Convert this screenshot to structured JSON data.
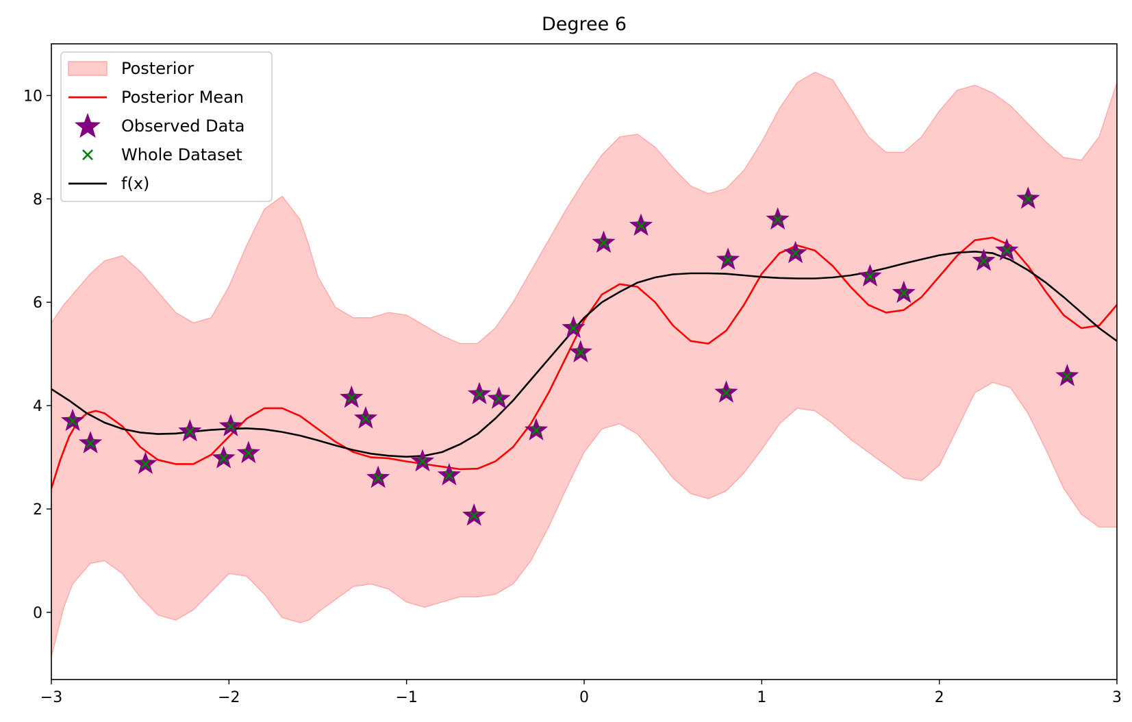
{
  "chart_data": {
    "type": "line",
    "title": "Degree 6",
    "xlabel": "",
    "ylabel": "",
    "xlim": [
      -3,
      3
    ],
    "ylim": [
      -1.3,
      11.0
    ],
    "x_ticks": [
      -3,
      -2,
      -1,
      0,
      1,
      2,
      3
    ],
    "x_tick_labels": [
      "−3",
      "−2",
      "−1",
      "0",
      "1",
      "2",
      "3"
    ],
    "y_ticks": [
      0,
      2,
      4,
      6,
      8,
      10
    ],
    "y_tick_labels": [
      "0",
      "2",
      "4",
      "6",
      "8",
      "10"
    ],
    "grid": false,
    "legend_position": "top-left",
    "legend": [
      {
        "label": "Posterior",
        "kind": "patch"
      },
      {
        "label": "Posterior Mean",
        "kind": "line"
      },
      {
        "label": "Observed Data",
        "kind": "star"
      },
      {
        "label": "Whole Dataset",
        "kind": "x"
      },
      {
        "label": "f(x)",
        "kind": "line"
      }
    ],
    "colors": {
      "posterior_fill": "#ffcccc",
      "posterior_edge": "#ffaaaa",
      "posterior_mean": "#ff0000",
      "observed": "#800080",
      "whole": "#008000",
      "fx": "#000000"
    },
    "posterior_band": {
      "x": [
        -3.0,
        -2.93,
        -2.88,
        -2.78,
        -2.7,
        -2.6,
        -2.5,
        -2.4,
        -2.3,
        -2.2,
        -2.1,
        -2.0,
        -1.9,
        -1.8,
        -1.7,
        -1.6,
        -1.55,
        -1.5,
        -1.4,
        -1.3,
        -1.2,
        -1.1,
        -1.0,
        -0.9,
        -0.8,
        -0.7,
        -0.6,
        -0.5,
        -0.4,
        -0.3,
        -0.2,
        -0.1,
        0.0,
        0.1,
        0.2,
        0.3,
        0.4,
        0.5,
        0.6,
        0.7,
        0.8,
        0.9,
        1.0,
        1.1,
        1.2,
        1.3,
        1.4,
        1.5,
        1.6,
        1.7,
        1.8,
        1.9,
        2.0,
        2.1,
        2.2,
        2.3,
        2.4,
        2.5,
        2.6,
        2.7,
        2.8,
        2.9,
        3.0
      ],
      "upper": [
        5.6,
        5.95,
        6.15,
        6.55,
        6.8,
        6.9,
        6.6,
        6.2,
        5.8,
        5.6,
        5.7,
        6.3,
        7.1,
        7.8,
        8.05,
        7.6,
        7.1,
        6.5,
        5.9,
        5.7,
        5.7,
        5.8,
        5.75,
        5.55,
        5.35,
        5.2,
        5.2,
        5.5,
        6.0,
        6.6,
        7.2,
        7.8,
        8.35,
        8.85,
        9.2,
        9.25,
        9.0,
        8.6,
        8.25,
        8.1,
        8.2,
        8.55,
        9.1,
        9.75,
        10.25,
        10.45,
        10.3,
        9.75,
        9.2,
        8.9,
        8.9,
        9.2,
        9.7,
        10.1,
        10.2,
        10.05,
        9.8,
        9.45,
        9.1,
        8.8,
        8.75,
        9.2,
        10.25
      ],
      "lower": [
        -0.85,
        0.1,
        0.55,
        0.95,
        1.0,
        0.75,
        0.3,
        -0.05,
        -0.15,
        0.05,
        0.4,
        0.75,
        0.7,
        0.35,
        -0.1,
        -0.2,
        -0.15,
        0.0,
        0.25,
        0.5,
        0.55,
        0.45,
        0.2,
        0.1,
        0.2,
        0.3,
        0.3,
        0.35,
        0.55,
        1.0,
        1.65,
        2.4,
        3.1,
        3.55,
        3.65,
        3.45,
        3.05,
        2.6,
        2.3,
        2.2,
        2.35,
        2.7,
        3.15,
        3.65,
        3.95,
        3.9,
        3.65,
        3.35,
        3.1,
        2.85,
        2.6,
        2.55,
        2.85,
        3.55,
        4.25,
        4.45,
        4.35,
        3.85,
        3.15,
        2.4,
        1.9,
        1.65,
        1.65
      ]
    },
    "series": [
      {
        "name": "Posterior Mean",
        "color": "#ff0000",
        "x": [
          -3.0,
          -2.95,
          -2.9,
          -2.85,
          -2.8,
          -2.75,
          -2.7,
          -2.6,
          -2.5,
          -2.4,
          -2.3,
          -2.2,
          -2.1,
          -2.0,
          -1.9,
          -1.8,
          -1.7,
          -1.6,
          -1.5,
          -1.4,
          -1.3,
          -1.2,
          -1.1,
          -1.0,
          -0.9,
          -0.8,
          -0.7,
          -0.6,
          -0.5,
          -0.4,
          -0.3,
          -0.2,
          -0.1,
          0.0,
          0.1,
          0.2,
          0.3,
          0.4,
          0.5,
          0.6,
          0.7,
          0.8,
          0.9,
          1.0,
          1.1,
          1.2,
          1.3,
          1.4,
          1.5,
          1.6,
          1.7,
          1.8,
          1.9,
          2.0,
          2.1,
          2.2,
          2.3,
          2.4,
          2.5,
          2.6,
          2.7,
          2.8,
          2.9,
          3.0
        ],
        "y": [
          2.4,
          2.95,
          3.4,
          3.7,
          3.85,
          3.9,
          3.85,
          3.6,
          3.2,
          2.95,
          2.87,
          2.87,
          3.05,
          3.4,
          3.75,
          3.95,
          3.95,
          3.8,
          3.55,
          3.3,
          3.1,
          3.0,
          2.98,
          2.92,
          2.87,
          2.82,
          2.77,
          2.78,
          2.92,
          3.2,
          3.65,
          4.25,
          4.95,
          5.65,
          6.15,
          6.35,
          6.3,
          6.0,
          5.55,
          5.25,
          5.2,
          5.45,
          5.95,
          6.55,
          6.95,
          7.1,
          7.0,
          6.7,
          6.3,
          5.95,
          5.8,
          5.85,
          6.1,
          6.5,
          6.9,
          7.2,
          7.25,
          7.1,
          6.7,
          6.2,
          5.75,
          5.5,
          5.55,
          5.95
        ]
      },
      {
        "name": "f(x)",
        "color": "#000000",
        "x": [
          -3.0,
          -2.9,
          -2.8,
          -2.7,
          -2.6,
          -2.5,
          -2.4,
          -2.3,
          -2.2,
          -2.1,
          -2.0,
          -1.9,
          -1.8,
          -1.7,
          -1.6,
          -1.5,
          -1.4,
          -1.3,
          -1.2,
          -1.1,
          -1.0,
          -0.9,
          -0.8,
          -0.7,
          -0.6,
          -0.5,
          -0.4,
          -0.3,
          -0.2,
          -0.1,
          0.0,
          0.1,
          0.2,
          0.3,
          0.4,
          0.5,
          0.6,
          0.7,
          0.8,
          0.9,
          1.0,
          1.1,
          1.2,
          1.3,
          1.4,
          1.5,
          1.6,
          1.7,
          1.8,
          1.9,
          2.0,
          2.1,
          2.2,
          2.3,
          2.4,
          2.5,
          2.6,
          2.7,
          2.8,
          2.9,
          3.0
        ],
        "y": [
          4.32,
          4.1,
          3.85,
          3.67,
          3.55,
          3.48,
          3.45,
          3.46,
          3.5,
          3.53,
          3.55,
          3.56,
          3.54,
          3.49,
          3.42,
          3.33,
          3.23,
          3.14,
          3.07,
          3.03,
          3.01,
          3.03,
          3.1,
          3.25,
          3.45,
          3.75,
          4.1,
          4.5,
          4.9,
          5.3,
          5.7,
          6.0,
          6.2,
          6.38,
          6.48,
          6.54,
          6.56,
          6.56,
          6.55,
          6.52,
          6.49,
          6.47,
          6.46,
          6.46,
          6.48,
          6.52,
          6.58,
          6.66,
          6.75,
          6.83,
          6.91,
          6.96,
          6.98,
          6.95,
          6.82,
          6.62,
          6.38,
          6.1,
          5.8,
          5.5,
          5.25
        ]
      }
    ],
    "points": {
      "x": [
        -2.88,
        -2.78,
        -2.47,
        -2.22,
        -2.03,
        -1.99,
        -1.89,
        -1.31,
        -1.23,
        -1.16,
        -0.91,
        -0.76,
        -0.62,
        -0.59,
        -0.48,
        -0.27,
        -0.06,
        -0.02,
        0.11,
        0.32,
        0.8,
        0.81,
        1.09,
        1.19,
        1.61,
        1.8,
        2.25,
        2.38,
        2.5,
        2.72
      ],
      "y": [
        3.7,
        3.27,
        2.87,
        3.5,
        2.98,
        3.6,
        3.08,
        4.15,
        3.75,
        2.6,
        2.92,
        2.65,
        1.87,
        4.22,
        4.13,
        3.52,
        5.5,
        5.03,
        7.15,
        7.48,
        4.25,
        6.82,
        7.6,
        6.95,
        6.5,
        6.18,
        6.8,
        7.0,
        8.0,
        4.57
      ]
    }
  }
}
